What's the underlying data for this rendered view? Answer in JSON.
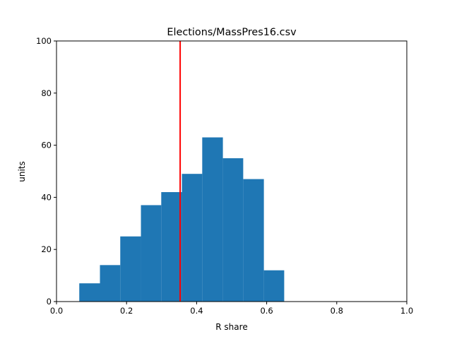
{
  "chart_data": {
    "type": "bar",
    "title": "Elections/MassPres16.csv",
    "xlabel": "R share",
    "ylabel": "units",
    "xlim": [
      0.0,
      1.0
    ],
    "ylim": [
      0,
      100
    ],
    "xticks": [
      "0.0",
      "0.2",
      "0.4",
      "0.6",
      "0.8",
      "1.0"
    ],
    "yticks": [
      "0",
      "20",
      "40",
      "60",
      "80",
      "100"
    ],
    "bins": [
      {
        "x0": 0.065,
        "x1": 0.124,
        "count": 7
      },
      {
        "x0": 0.124,
        "x1": 0.182,
        "count": 14
      },
      {
        "x0": 0.182,
        "x1": 0.241,
        "count": 25
      },
      {
        "x0": 0.241,
        "x1": 0.299,
        "count": 37
      },
      {
        "x0": 0.299,
        "x1": 0.358,
        "count": 42
      },
      {
        "x0": 0.358,
        "x1": 0.416,
        "count": 49
      },
      {
        "x0": 0.416,
        "x1": 0.475,
        "count": 63
      },
      {
        "x0": 0.475,
        "x1": 0.533,
        "count": 55
      },
      {
        "x0": 0.533,
        "x1": 0.592,
        "count": 47
      },
      {
        "x0": 0.592,
        "x1": 0.65,
        "count": 12
      }
    ],
    "reference_line": {
      "x": 0.353,
      "color": "#ff0000"
    },
    "bar_color": "#1f77b4",
    "grid": false,
    "legend": "none"
  }
}
